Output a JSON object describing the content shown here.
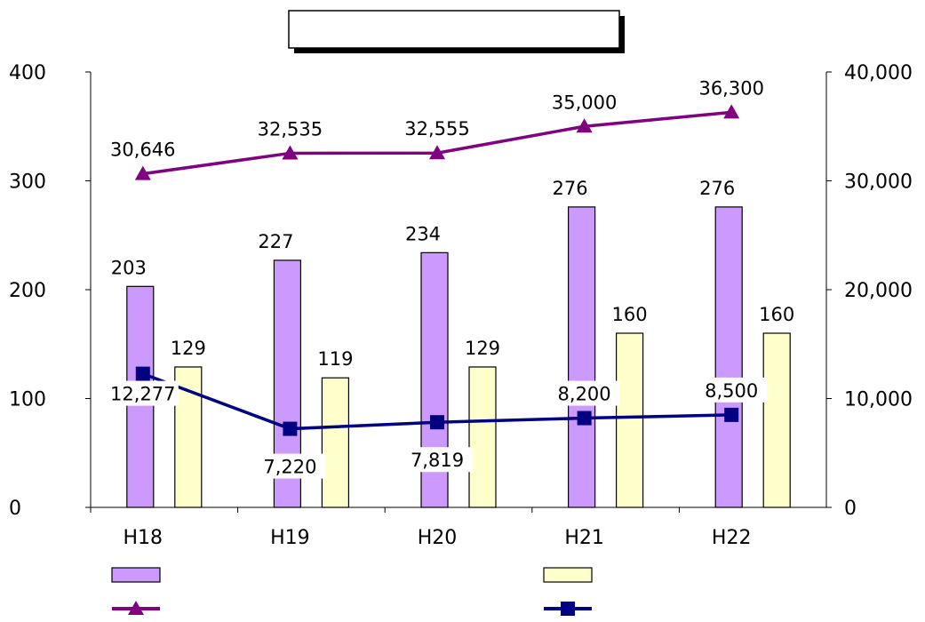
{
  "chart_data": {
    "type": "bar",
    "title": "",
    "categories": [
      "H18",
      "H19",
      "H20",
      "H21",
      "H22"
    ],
    "left_axis": {
      "ylim": [
        0,
        400
      ],
      "ticks": [
        "0",
        "100",
        "200",
        "300",
        "400"
      ]
    },
    "right_axis": {
      "ylim": [
        0,
        40000
      ],
      "ticks": [
        "0",
        "10,000",
        "20,000",
        "30,000",
        "40,000"
      ]
    },
    "series": [
      {
        "type": "bar",
        "axis": "left",
        "color": "#cc99ff",
        "values": [
          203,
          227,
          234,
          276,
          276
        ],
        "labels": [
          "203",
          "227",
          "234",
          "276",
          "276"
        ]
      },
      {
        "type": "bar",
        "axis": "left",
        "color": "#ffffcc",
        "values": [
          129,
          119,
          129,
          160,
          160
        ],
        "labels": [
          "129",
          "119",
          "129",
          "160",
          "160"
        ]
      },
      {
        "type": "line",
        "axis": "right",
        "color": "#800080",
        "marker": "triangle",
        "values": [
          30646,
          32535,
          32555,
          35000,
          36300
        ],
        "labels": [
          "30,646",
          "32,535",
          "32,555",
          "35,000",
          "36,300"
        ]
      },
      {
        "type": "line",
        "axis": "right",
        "color": "#000080",
        "marker": "square",
        "values": [
          12277,
          7220,
          7819,
          8200,
          8500
        ],
        "labels": [
          "12,277",
          "7,220",
          "7,819",
          "8,200",
          "8,500"
        ]
      }
    ],
    "legend": {
      "placement": "bottom"
    },
    "grid": false
  }
}
